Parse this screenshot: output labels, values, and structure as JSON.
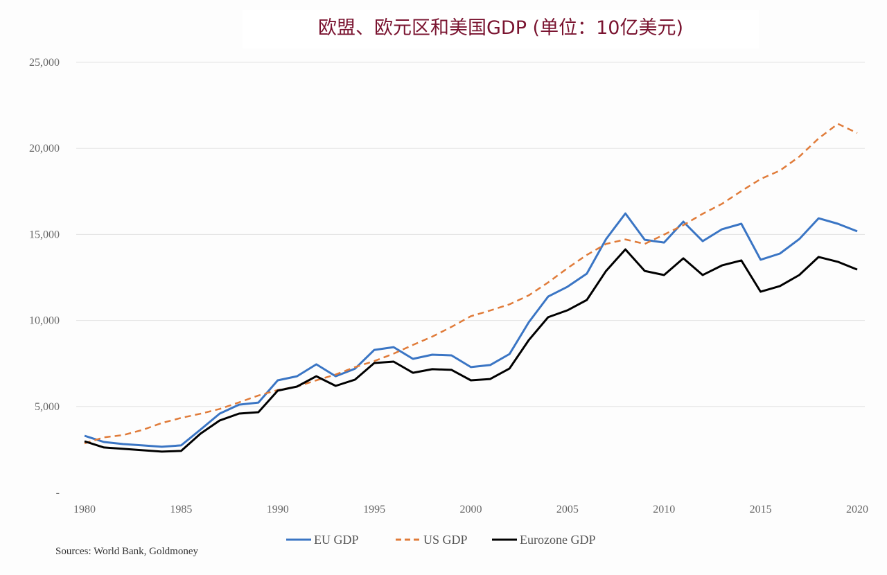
{
  "chart_data": {
    "type": "line",
    "title": "欧盟、欧元区和美国GDP (单位：10亿美元)",
    "xlabel": "",
    "ylabel": "",
    "xlim": [
      1980,
      2020
    ],
    "ylim": [
      0,
      25000
    ],
    "x_ticks": [
      "1980",
      "1985",
      "1990",
      "1995",
      "2000",
      "2005",
      "2010",
      "2015",
      "2020"
    ],
    "y_ticks": [
      "-",
      "5,000",
      "10,000",
      "15,000",
      "20,000",
      "25,000"
    ],
    "grid": "horizontal",
    "legend_position": "bottom",
    "x": [
      1980,
      1981,
      1982,
      1983,
      1984,
      1985,
      1986,
      1987,
      1988,
      1989,
      1990,
      1991,
      1992,
      1993,
      1994,
      1995,
      1996,
      1997,
      1998,
      1999,
      2000,
      2001,
      2002,
      2003,
      2004,
      2005,
      2006,
      2007,
      2008,
      2009,
      2010,
      2011,
      2012,
      2013,
      2014,
      2015,
      2016,
      2017,
      2018,
      2019,
      2020
    ],
    "series": [
      {
        "name": "EU GDP",
        "color": "#3a75c4",
        "style": "solid",
        "values": [
          3300,
          2940,
          2820,
          2740,
          2660,
          2740,
          3660,
          4590,
          5110,
          5230,
          6520,
          6760,
          7450,
          6760,
          7200,
          8290,
          8450,
          7770,
          8010,
          7970,
          7290,
          7410,
          8050,
          9900,
          11390,
          11960,
          12720,
          14730,
          16220,
          14690,
          14530,
          15740,
          14610,
          15300,
          15620,
          13530,
          13890,
          14730,
          15940,
          15620,
          15180
        ]
      },
      {
        "name": "US GDP",
        "color": "#e07b39",
        "style": "dashed",
        "values": [
          2860,
          3210,
          3340,
          3640,
          4040,
          4340,
          4580,
          4860,
          5240,
          5640,
          5960,
          6160,
          6520,
          6860,
          7290,
          7640,
          8070,
          8580,
          9060,
          9630,
          10250,
          10580,
          10940,
          11460,
          12210,
          13040,
          13810,
          14450,
          14710,
          14450,
          14990,
          15540,
          16200,
          16780,
          17520,
          18220,
          18710,
          19520,
          20580,
          21430,
          20890
        ]
      },
      {
        "name": "Eurozone GDP",
        "color": "#000000",
        "style": "solid",
        "values": [
          2980,
          2620,
          2540,
          2460,
          2380,
          2420,
          3420,
          4190,
          4590,
          4670,
          5920,
          6160,
          6760,
          6200,
          6560,
          7530,
          7610,
          6960,
          7170,
          7130,
          6520,
          6600,
          7210,
          8860,
          10190,
          10590,
          11190,
          12880,
          14130,
          12880,
          12640,
          13610,
          12640,
          13200,
          13490,
          11670,
          12000,
          12640,
          13690,
          13410,
          12960
        ]
      }
    ]
  },
  "source": "Sources: World Bank, Goldmoney"
}
